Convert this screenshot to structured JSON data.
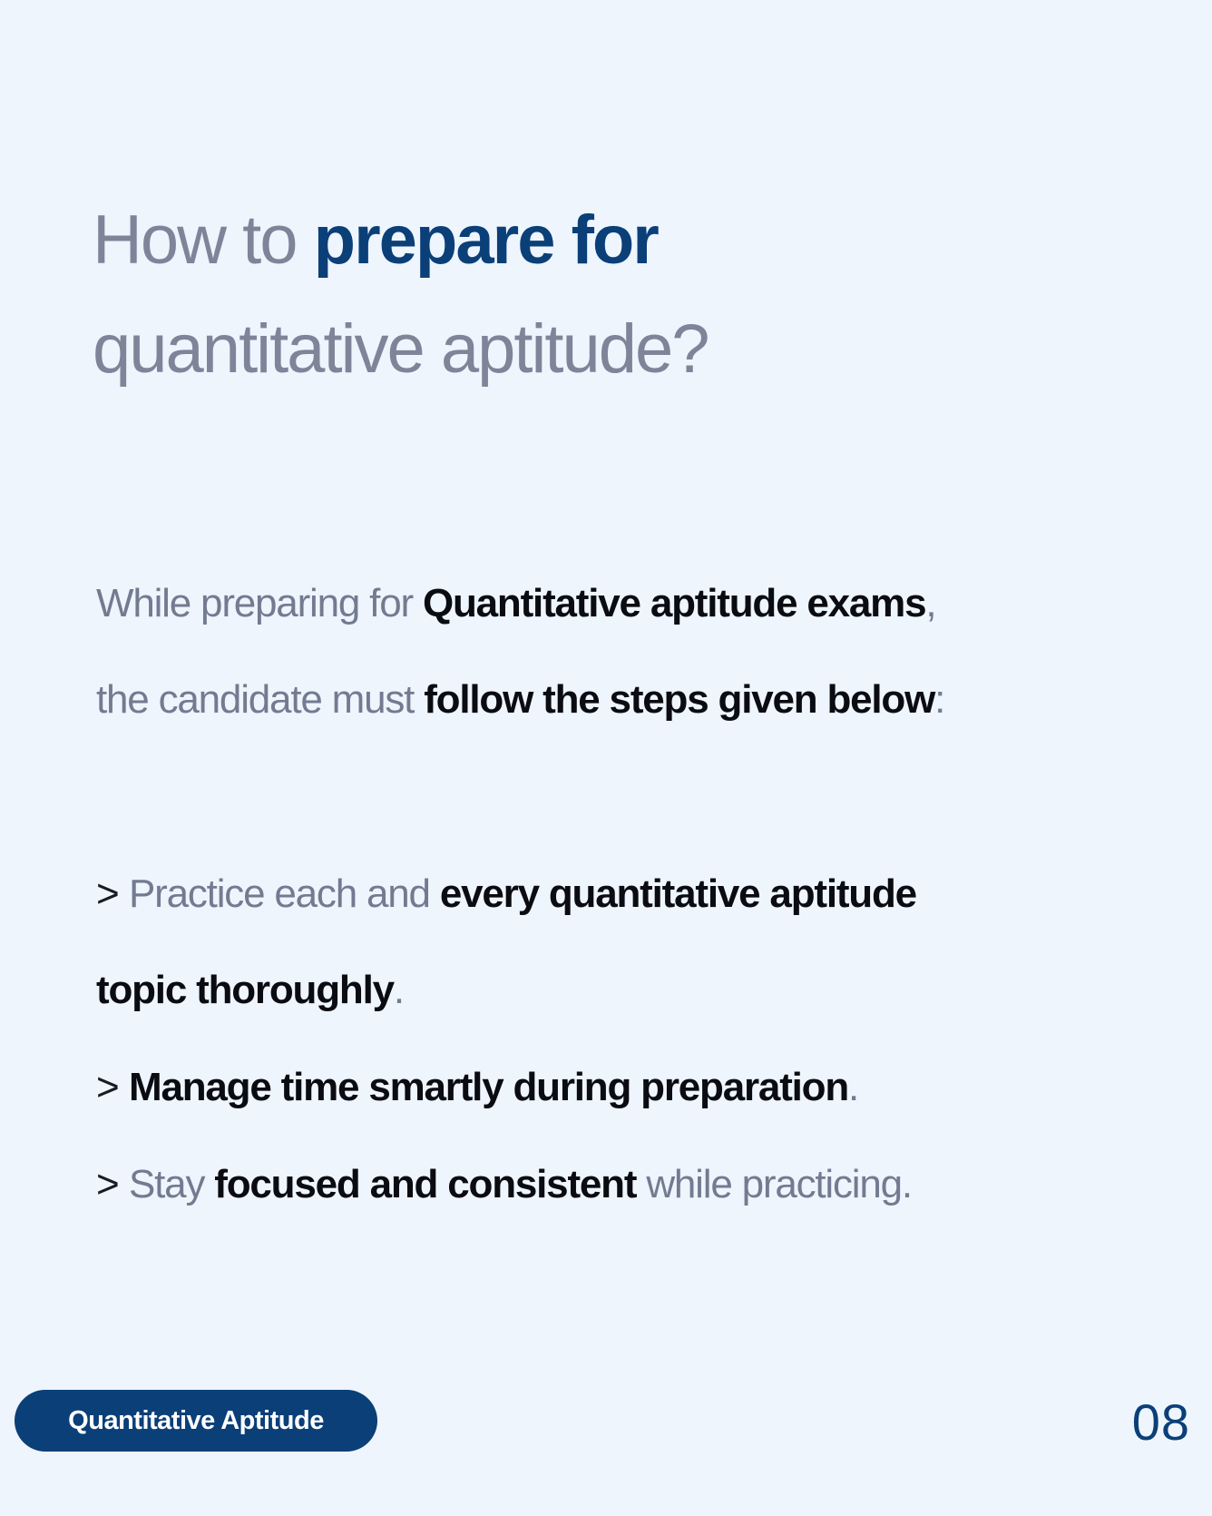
{
  "heading": {
    "part1": "How to ",
    "accent": "prepare for",
    "part2": "quantitative aptitude?"
  },
  "intro": {
    "line1_plain": "While preparing for ",
    "line1_bold": "Quantitative aptitude exams",
    "line1_end": ",",
    "line2_plain": "the candidate must ",
    "line2_bold": "follow the steps given below",
    "line2_end": ":"
  },
  "steps": [
    {
      "marker": ">",
      "plain_before": "Practice each and ",
      "bold": "every quantitative aptitude",
      "continuation_bold": "topic thoroughly",
      "end": "."
    },
    {
      "marker": ">",
      "plain_before": "",
      "bold": "Manage time smartly during preparation",
      "end": "."
    },
    {
      "marker": ">",
      "plain_before": "Stay ",
      "bold": "focused and consistent",
      "plain_after": " while practicing."
    }
  ],
  "footer": {
    "tag": "Quantitative Aptitude",
    "page_number": "08"
  },
  "colors": {
    "background": "#eef5fd",
    "accent": "#0b3f78",
    "muted_text": "#737b91",
    "bold_text": "#0b0b12"
  }
}
